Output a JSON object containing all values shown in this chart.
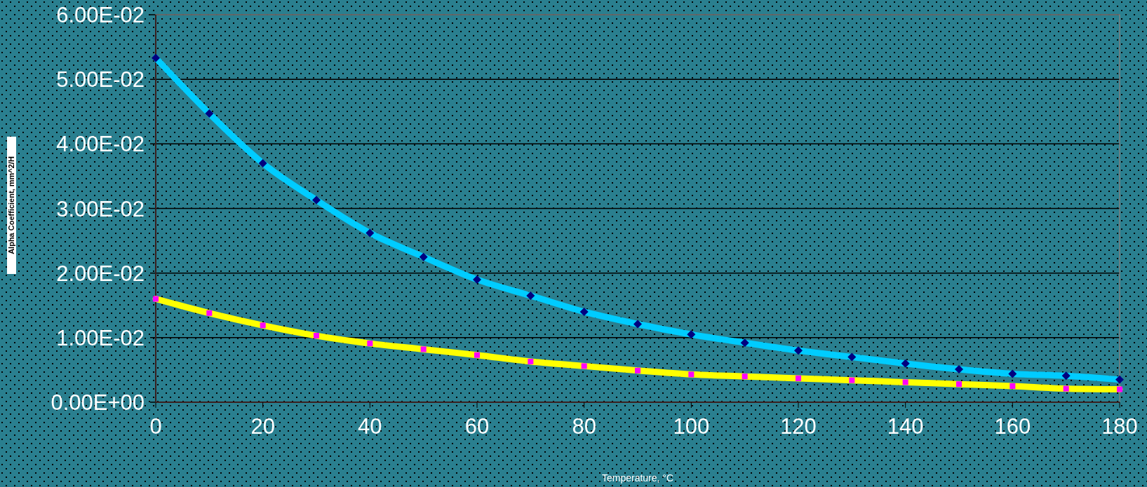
{
  "chart_data": {
    "type": "line",
    "xlabel": "Temperature, °C",
    "ylabel": "Alpha Coefficient, mm^2/H",
    "x": [
      0,
      10,
      20,
      30,
      40,
      50,
      60,
      70,
      80,
      90,
      100,
      110,
      120,
      130,
      140,
      150,
      160,
      170,
      180
    ],
    "series": [
      {
        "color": "#00ccff",
        "marker": "diamond",
        "colors": [
          "#000080",
          "#000080",
          "#000080",
          "#000080",
          "#000080",
          "#000080",
          "#000080",
          "#000080",
          "#000080",
          "#000080",
          "#000080",
          "#000080",
          "#000080",
          "#000080",
          "#000080",
          "#000080",
          "#000080",
          "#000080",
          "#000080"
        ],
        "values": [
          0.0533,
          0.0447,
          0.037,
          0.0313,
          0.0262,
          0.0225,
          0.019,
          0.0165,
          0.014,
          0.0121,
          0.0105,
          0.0092,
          0.008,
          0.007,
          0.006,
          0.0051,
          0.0044,
          0.0041,
          0.0035
        ]
      },
      {
        "color": "#ffff00",
        "marker": "square",
        "colors": [
          "#ff00ff",
          "#ff00ff",
          "#ff00ff",
          "#ff00ff",
          "#ff00ff",
          "#ff00ff",
          "#ff00ff",
          "#ff00ff",
          "#ff00ff",
          "#ff00ff",
          "#ff00ff",
          "#ff00ff",
          "#ff00ff",
          "#ff00ff",
          "#ff00ff",
          "#ff00ff",
          "#ff00ff",
          "#ff00ff",
          "#ff00ff"
        ],
        "values": [
          0.016,
          0.0138,
          0.0119,
          0.0103,
          0.0091,
          0.0082,
          0.0073,
          0.0063,
          0.0056,
          0.0049,
          0.0043,
          0.004,
          0.0037,
          0.0034,
          0.0031,
          0.0028,
          0.0025,
          0.0021,
          0.002
        ]
      }
    ],
    "xlim": [
      0,
      180
    ],
    "xticks": [
      0,
      20,
      40,
      60,
      80,
      100,
      120,
      140,
      160,
      180
    ],
    "ylim": [
      0,
      0.06
    ],
    "yticks": [
      {
        "value": 0,
        "label": "0.00E+00"
      },
      {
        "value": 0.01,
        "label": "1.00E-02"
      },
      {
        "value": 0.02,
        "label": "2.00E-02"
      },
      {
        "value": 0.03,
        "label": "3.00E-02"
      },
      {
        "value": 0.04,
        "label": "4.00E-02"
      },
      {
        "value": 0.05,
        "label": "5.00E-02"
      },
      {
        "value": 0.06,
        "label": "6.00E-02"
      }
    ],
    "grid": "y",
    "line_style": "solid"
  }
}
